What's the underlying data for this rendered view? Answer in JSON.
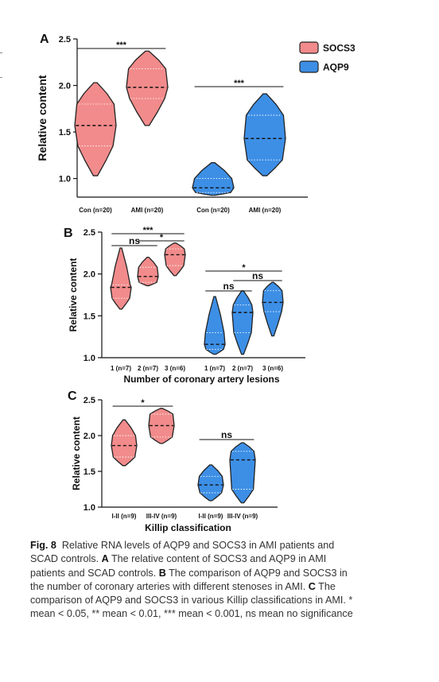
{
  "colors": {
    "socs3": "#f28b8b",
    "aqp9": "#3d8fe6",
    "outline": "#222222"
  },
  "legend": [
    {
      "label": "SOCS3",
      "color": "#f28b8b"
    },
    {
      "label": "AQP9",
      "color": "#3d8fe6"
    }
  ],
  "caption": {
    "fig_label": "Fig. 8",
    "intro": "Relative RNA levels of AQP9 and SOCS3 in AMI patients and SCAD controls.",
    "a_label": "A",
    "a_text": "The relative content of SOCS3 and AQP9 in AMI patients and SCAD controls.",
    "b_label": "B",
    "b_text": "The comparison of AQP9 and SOCS3 in the number of coronary arteries with different stenoses in AMI.",
    "c_label": "C",
    "c_text": "The comparison of AQP9 and SOCS3 in various Killip classifications in AMI. * mean < 0.05, ** mean < 0.01, *** mean < 0.001, ns mean no significance"
  },
  "chart_data": [
    {
      "panel": "A",
      "type": "violin",
      "ylabel": "Relative content",
      "xlabel": "",
      "ylim": [
        0.8,
        2.5
      ],
      "yticks": [
        "1.0",
        "1.5",
        "2.0",
        "2.5"
      ],
      "groups": [
        {
          "label": "Con (n=20)",
          "series": "SOCS3",
          "min": 1.03,
          "max": 2.03,
          "median": 1.57,
          "q1": 1.35,
          "q3": 1.8
        },
        {
          "label": "AMI (n=20)",
          "series": "SOCS3",
          "min": 1.57,
          "max": 2.37,
          "median": 1.98,
          "q1": 1.86,
          "q3": 2.18
        },
        {
          "label": "Con (n=20)",
          "series": "AQP9",
          "min": 0.82,
          "max": 1.17,
          "median": 0.9,
          "q1": 0.85,
          "q3": 1.0
        },
        {
          "label": "AMI (n=20)",
          "series": "AQP9",
          "min": 1.03,
          "max": 1.91,
          "median": 1.43,
          "q1": 1.2,
          "q3": 1.68
        }
      ],
      "comparisons": [
        {
          "between": [
            0,
            1
          ],
          "label": "***"
        },
        {
          "between": [
            2,
            3
          ],
          "label": "***"
        }
      ]
    },
    {
      "panel": "B",
      "type": "violin",
      "ylabel": "Relative content",
      "xlabel": "Number of coronary artery lesions",
      "ylim": [
        1.0,
        2.5
      ],
      "yticks": [
        "1.0",
        "1.5",
        "2.0",
        "2.5"
      ],
      "groups": [
        {
          "label": "1 (n=7)",
          "series": "SOCS3",
          "min": 1.58,
          "max": 2.31,
          "median": 1.84,
          "q1": 1.71,
          "q3": 1.87
        },
        {
          "label": "2 (n=7)",
          "series": "SOCS3",
          "min": 1.86,
          "max": 2.2,
          "median": 1.97,
          "q1": 1.9,
          "q3": 2.08
        },
        {
          "label": "3 (n=6)",
          "series": "SOCS3",
          "min": 1.98,
          "max": 2.37,
          "median": 2.23,
          "q1": 2.1,
          "q3": 2.3
        },
        {
          "label": "1 (n=7)",
          "series": "AQP9",
          "min": 1.04,
          "max": 1.73,
          "median": 1.16,
          "q1": 1.1,
          "q3": 1.3
        },
        {
          "label": "2 (n=7)",
          "series": "AQP9",
          "min": 1.04,
          "max": 1.8,
          "median": 1.54,
          "q1": 1.3,
          "q3": 1.63
        },
        {
          "label": "3 (n=6)",
          "series": "AQP9",
          "min": 1.26,
          "max": 1.9,
          "median": 1.66,
          "q1": 1.55,
          "q3": 1.8
        }
      ],
      "comparisons": [
        {
          "between": [
            0,
            2
          ],
          "label": "***",
          "level": 2
        },
        {
          "between": [
            0,
            1
          ],
          "label": "ns",
          "level": 1
        },
        {
          "between": [
            1,
            2
          ],
          "label": "*",
          "level": 1
        },
        {
          "between": [
            3,
            5
          ],
          "label": "*",
          "level": 2
        },
        {
          "between": [
            3,
            4
          ],
          "label": "ns",
          "level": 1
        },
        {
          "between": [
            4,
            5
          ],
          "label": "ns",
          "level": 1
        }
      ]
    },
    {
      "panel": "C",
      "type": "violin",
      "ylabel": "Relative content",
      "xlabel": "Killip classification",
      "ylim": [
        1.0,
        2.5
      ],
      "yticks": [
        "1.0",
        "1.5",
        "2.0",
        "2.5"
      ],
      "groups": [
        {
          "label": "I-II (n=9)",
          "series": "SOCS3",
          "min": 1.58,
          "max": 2.22,
          "median": 1.86,
          "q1": 1.7,
          "q3": 2.0
        },
        {
          "label": "III-IV (n=9)",
          "series": "SOCS3",
          "min": 1.89,
          "max": 2.38,
          "median": 2.14,
          "q1": 1.98,
          "q3": 2.3
        },
        {
          "label": "I-II (n=9)",
          "series": "AQP9",
          "min": 1.09,
          "max": 1.59,
          "median": 1.31,
          "q1": 1.2,
          "q3": 1.43
        },
        {
          "label": "III-IV (n=9)",
          "series": "AQP9",
          "min": 1.06,
          "max": 1.9,
          "median": 1.66,
          "q1": 1.25,
          "q3": 1.78
        }
      ],
      "comparisons": [
        {
          "between": [
            0,
            1
          ],
          "label": "*"
        },
        {
          "between": [
            2,
            3
          ],
          "label": "ns"
        }
      ]
    }
  ]
}
